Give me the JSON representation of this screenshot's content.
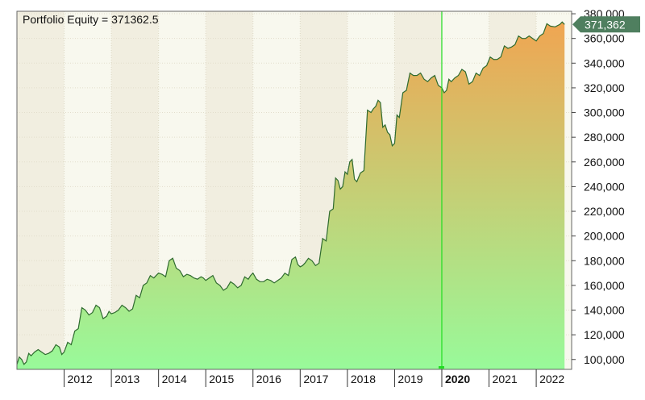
{
  "chart_data": {
    "type": "area",
    "title": "Portfolio Equity = 371362.5",
    "last_value_label": "371,362",
    "highlight_year": "2020",
    "ylim": [
      92000,
      382000
    ],
    "y_ticks": [
      100000,
      120000,
      140000,
      160000,
      180000,
      200000,
      220000,
      240000,
      260000,
      280000,
      300000,
      320000,
      340000,
      360000,
      380000
    ],
    "y_tick_labels": [
      "100,000",
      "120,000",
      "140,000",
      "160,000",
      "180,000",
      "200,000",
      "220,000",
      "240,000",
      "260,000",
      "280,000",
      "300,000",
      "320,000",
      "340,000",
      "360,000",
      "380,000"
    ],
    "x_tick_labels": [
      "2012",
      "2013",
      "2014",
      "2015",
      "2016",
      "2017",
      "2018",
      "2019",
      "2020",
      "2021",
      "2022"
    ],
    "x_range": [
      2011.0,
      2022.75
    ],
    "grid": true,
    "colors": {
      "line": "#2f6b2f",
      "fill_top": "#f0a552",
      "fill_bottom": "#98fa9a",
      "marker": "#22dd22",
      "badge": "#4f7f5f",
      "band_a": "#f8f8ee",
      "band_b": "#f1eee0"
    },
    "series": [
      {
        "x": [
          2011.0,
          2011.1,
          2011.2,
          2011.3,
          2011.45,
          2011.6,
          2011.75,
          2011.9,
          2012.0,
          2012.15,
          2012.3,
          2012.45,
          2012.6,
          2012.75,
          2012.9,
          2013.0,
          2013.15,
          2013.3,
          2013.45,
          2013.6,
          2013.75,
          2013.9,
          2014.0,
          2014.15,
          2014.3,
          2014.45,
          2014.6,
          2014.75,
          2014.9,
          2015.0,
          2015.15,
          2015.3,
          2015.45,
          2015.6,
          2015.75,
          2015.9,
          2016.0,
          2016.15,
          2016.3,
          2016.45,
          2016.6,
          2016.75,
          2016.9,
          2017.0,
          2017.1,
          2017.25,
          2017.4,
          2017.55,
          2017.7,
          2017.8,
          2017.9,
          2018.0,
          2018.1,
          2018.2,
          2018.35,
          2018.5,
          2018.6,
          2018.7,
          2018.8,
          2018.9,
          2019.0,
          2019.1,
          2019.25,
          2019.4,
          2019.55,
          2019.7,
          2019.85,
          2020.0,
          2020.1,
          2020.2,
          2020.35,
          2020.5,
          2020.65,
          2020.8,
          2020.95,
          2021.1,
          2021.25,
          2021.4,
          2021.55,
          2021.7,
          2021.85,
          2022.0,
          2022.15,
          2022.3,
          2022.5,
          2022.6
        ],
        "values": [
          96000,
          100000,
          98000,
          103000,
          108000,
          104000,
          107000,
          110000,
          106000,
          112000,
          125000,
          140000,
          138000,
          142000,
          135000,
          137000,
          140000,
          142000,
          141000,
          150000,
          162000,
          166000,
          170000,
          167000,
          182000,
          172000,
          169000,
          166000,
          167000,
          164000,
          168000,
          160000,
          158000,
          161000,
          160000,
          165000,
          170000,
          163000,
          165000,
          162000,
          166000,
          168000,
          183000,
          175000,
          178000,
          180000,
          178000,
          196000,
          222000,
          245000,
          240000,
          250000,
          262000,
          244000,
          253000,
          300000,
          305000,
          308000,
          290000,
          282000,
          275000,
          296000,
          318000,
          330000,
          332000,
          325000,
          330000,
          320000,
          318000,
          325000,
          330000,
          333000,
          325000,
          330000,
          338000,
          343000,
          345000,
          352000,
          355000,
          360000,
          362000,
          358000,
          364000,
          370000,
          371362,
          371362
        ]
      }
    ]
  }
}
